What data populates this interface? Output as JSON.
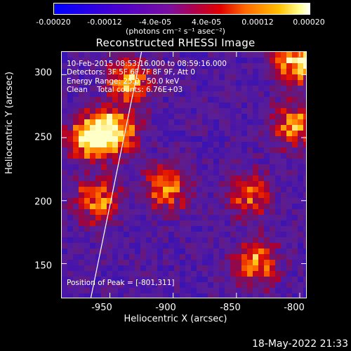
{
  "colorbar": {
    "ticks": [
      "-0.00020",
      "-0.00012",
      "-4.0e-05",
      "4.0e-05",
      "0.00012",
      "0.00020"
    ],
    "unit": "(photons cm⁻² s⁻¹ asec⁻²)"
  },
  "title": "Reconstructed RHESSI Image",
  "annotations": {
    "time_range": "10-Feb-2015 08:53:16.000 to 08:59:16.000",
    "detectors": "Detectors: 3F 5F 6F 7F 8F 9F, Att 0",
    "energy_range": "Energy Range: 25.0 - 50.0 keV",
    "clean": "Clean    Total counts: 6.76E+03",
    "peak": "Position of Peak = [-801,311]"
  },
  "axes": {
    "xlabel": "Heliocentric X (arcsec)",
    "ylabel": "Heliocentric Y (arcsec)",
    "xticks": [
      "-950",
      "-900",
      "-850",
      "-800"
    ],
    "yticks": [
      "300",
      "250",
      "200",
      "150"
    ]
  },
  "footer_date": "18-May-2022 21:33",
  "colors": {
    "background": "#000000",
    "text": "#ffffff",
    "image_base": "#2a1470"
  },
  "chart_data": {
    "type": "heatmap",
    "title": "Reconstructed RHESSI Image",
    "xlabel": "Heliocentric X (arcsec)",
    "ylabel": "Heliocentric Y (arcsec)",
    "xlim": [
      -988,
      -795
    ],
    "ylim": [
      123,
      318
    ],
    "zlim": [
      -0.0002,
      0.0002
    ],
    "colormap": "blue-purple-red-yellow-white",
    "bright_regions": [
      {
        "x": -965,
        "y": 250,
        "level": 0.95
      },
      {
        "x": -945,
        "y": 255,
        "level": 0.85
      },
      {
        "x": -935,
        "y": 295,
        "level": 0.75
      },
      {
        "x": -960,
        "y": 200,
        "level": 0.7
      },
      {
        "x": -905,
        "y": 210,
        "level": 0.7
      },
      {
        "x": -840,
        "y": 205,
        "level": 0.65
      },
      {
        "x": -835,
        "y": 150,
        "level": 0.75
      },
      {
        "x": -805,
        "y": 260,
        "level": 0.7
      },
      {
        "x": -801,
        "y": 311,
        "level": 1.0
      }
    ],
    "limb_line": {
      "x": [
        -965,
        -925
      ],
      "y": [
        123,
        318
      ]
    }
  }
}
